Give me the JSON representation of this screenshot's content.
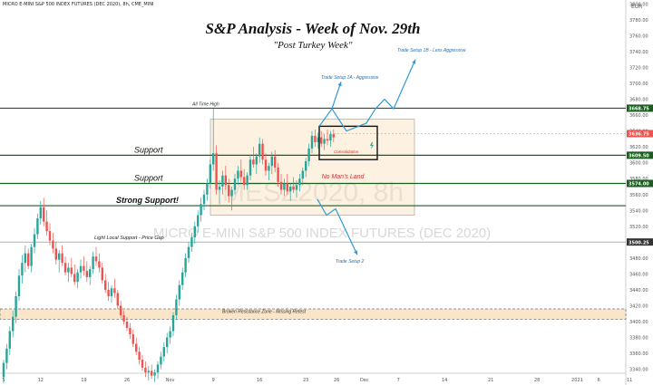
{
  "header": {
    "symbol_line": "MICRO E-MINI S&P 500 INDEX FUTURES (DEC 2020), 8h, CME_MINI",
    "top_right_code": "EUR"
  },
  "title": "S&P Analysis - Week of Nov. 29th",
  "subtitle": "\"Post Turkey Week\"",
  "watermark": {
    "line1": "MESZ2020, 8h",
    "line2": "MICRO E-MINI S&P 500 INDEX FUTURES (DEC 2020)"
  },
  "colors": {
    "up": "#26a69a",
    "down": "#ef5350",
    "level_line": "#1b5e20",
    "arrow": "#2e9bd6",
    "zone_fill": "#fbe5c8",
    "red_text": "#d32f2f",
    "label_bg_dark": "#1b5e20",
    "label_bg_red": "#ef5350"
  },
  "chart_data": {
    "type": "candlestick",
    "ylim": [
      3335,
      3805
    ],
    "y_ticks": [
      3340,
      3360,
      3380,
      3400,
      3420,
      3440,
      3460,
      3480,
      3500,
      3520,
      3540,
      3560,
      3580,
      3600,
      3620,
      3640,
      3660,
      3680,
      3700,
      3720,
      3740,
      3760,
      3780,
      3800
    ],
    "x_ticks": [
      {
        "label": "5",
        "i": 0
      },
      {
        "label": "12",
        "i": 12
      },
      {
        "label": "19",
        "i": 26
      },
      {
        "label": "26",
        "i": 40
      },
      {
        "label": "Nov",
        "i": 54
      },
      {
        "label": "9",
        "i": 68
      },
      {
        "label": "16",
        "i": 83
      },
      {
        "label": "23",
        "i": 98
      },
      {
        "label": "26",
        "i": 108
      },
      {
        "label": "Dec",
        "i": 117
      },
      {
        "label": "7",
        "i": 128
      },
      {
        "label": "14",
        "i": 143
      },
      {
        "label": "21",
        "i": 158
      },
      {
        "label": "28",
        "i": 173
      },
      {
        "label": "2021",
        "i": 186
      },
      {
        "label": "6",
        "i": 193
      },
      {
        "label": "11",
        "i": 203
      }
    ],
    "ohlc": [
      [
        3330,
        3352,
        3322,
        3348
      ],
      [
        3348,
        3372,
        3340,
        3366
      ],
      [
        3366,
        3394,
        3358,
        3388
      ],
      [
        3388,
        3414,
        3380,
        3406
      ],
      [
        3406,
        3438,
        3398,
        3432
      ],
      [
        3432,
        3466,
        3426,
        3458
      ],
      [
        3458,
        3484,
        3448,
        3474
      ],
      [
        3474,
        3496,
        3462,
        3486
      ],
      [
        3486,
        3492,
        3466,
        3470
      ],
      [
        3470,
        3498,
        3462,
        3494
      ],
      [
        3494,
        3518,
        3486,
        3510
      ],
      [
        3510,
        3536,
        3504,
        3530
      ],
      [
        3530,
        3552,
        3522,
        3544
      ],
      [
        3544,
        3556,
        3520,
        3526
      ],
      [
        3526,
        3540,
        3508,
        3514
      ],
      [
        3514,
        3524,
        3496,
        3502
      ],
      [
        3502,
        3512,
        3486,
        3492
      ],
      [
        3492,
        3500,
        3472,
        3478
      ],
      [
        3478,
        3490,
        3462,
        3486
      ],
      [
        3486,
        3496,
        3470,
        3474
      ],
      [
        3474,
        3482,
        3458,
        3462
      ],
      [
        3462,
        3474,
        3450,
        3468
      ],
      [
        3468,
        3480,
        3456,
        3460
      ],
      [
        3460,
        3472,
        3446,
        3450
      ],
      [
        3450,
        3466,
        3442,
        3462
      ],
      [
        3462,
        3478,
        3454,
        3470
      ],
      [
        3470,
        3482,
        3458,
        3464
      ],
      [
        3464,
        3476,
        3450,
        3456
      ],
      [
        3456,
        3470,
        3446,
        3466
      ],
      [
        3466,
        3488,
        3460,
        3482
      ],
      [
        3482,
        3494,
        3470,
        3476
      ],
      [
        3476,
        3486,
        3462,
        3468
      ],
      [
        3468,
        3474,
        3448,
        3452
      ],
      [
        3452,
        3460,
        3436,
        3440
      ],
      [
        3440,
        3450,
        3426,
        3432
      ],
      [
        3432,
        3446,
        3424,
        3442
      ],
      [
        3442,
        3454,
        3430,
        3436
      ],
      [
        3436,
        3440,
        3416,
        3420
      ],
      [
        3420,
        3426,
        3404,
        3408
      ],
      [
        3408,
        3414,
        3396,
        3400
      ],
      [
        3400,
        3406,
        3388,
        3392
      ],
      [
        3392,
        3398,
        3378,
        3384
      ],
      [
        3384,
        3390,
        3368,
        3372
      ],
      [
        3372,
        3380,
        3358,
        3362
      ],
      [
        3362,
        3368,
        3346,
        3352
      ],
      [
        3352,
        3358,
        3338,
        3342
      ],
      [
        3342,
        3350,
        3330,
        3336
      ],
      [
        3336,
        3344,
        3326,
        3338
      ],
      [
        3338,
        3346,
        3328,
        3332
      ],
      [
        3332,
        3340,
        3324,
        3336
      ],
      [
        3336,
        3350,
        3328,
        3346
      ],
      [
        3346,
        3362,
        3340,
        3356
      ],
      [
        3356,
        3374,
        3350,
        3368
      ],
      [
        3368,
        3386,
        3360,
        3380
      ],
      [
        3380,
        3394,
        3372,
        3388
      ],
      [
        3388,
        3412,
        3382,
        3408
      ],
      [
        3408,
        3434,
        3402,
        3428
      ],
      [
        3428,
        3452,
        3420,
        3446
      ],
      [
        3446,
        3468,
        3440,
        3462
      ],
      [
        3462,
        3486,
        3456,
        3480
      ],
      [
        3480,
        3500,
        3474,
        3494
      ],
      [
        3494,
        3512,
        3488,
        3506
      ],
      [
        3506,
        3526,
        3498,
        3520
      ],
      [
        3520,
        3540,
        3512,
        3534
      ],
      [
        3534,
        3556,
        3526,
        3548
      ],
      [
        3548,
        3566,
        3540,
        3560
      ],
      [
        3560,
        3580,
        3552,
        3574
      ],
      [
        3574,
        3604,
        3568,
        3598
      ],
      [
        3598,
        3668,
        3590,
        3612
      ],
      [
        3612,
        3622,
        3560,
        3566
      ],
      [
        3566,
        3578,
        3548,
        3570
      ],
      [
        3570,
        3590,
        3560,
        3584
      ],
      [
        3584,
        3596,
        3566,
        3572
      ],
      [
        3572,
        3580,
        3550,
        3558
      ],
      [
        3558,
        3570,
        3540,
        3566
      ],
      [
        3566,
        3586,
        3560,
        3580
      ],
      [
        3580,
        3596,
        3572,
        3590
      ],
      [
        3590,
        3604,
        3576,
        3582
      ],
      [
        3582,
        3592,
        3566,
        3572
      ],
      [
        3572,
        3588,
        3566,
        3584
      ],
      [
        3584,
        3610,
        3578,
        3604
      ],
      [
        3604,
        3620,
        3594,
        3598
      ],
      [
        3598,
        3612,
        3586,
        3608
      ],
      [
        3608,
        3632,
        3600,
        3624
      ],
      [
        3624,
        3630,
        3598,
        3604
      ],
      [
        3604,
        3612,
        3584,
        3590
      ],
      [
        3590,
        3600,
        3578,
        3596
      ],
      [
        3596,
        3614,
        3586,
        3608
      ],
      [
        3608,
        3616,
        3588,
        3594
      ],
      [
        3594,
        3600,
        3570,
        3576
      ],
      [
        3576,
        3586,
        3560,
        3566
      ],
      [
        3566,
        3580,
        3558,
        3574
      ],
      [
        3574,
        3586,
        3560,
        3564
      ],
      [
        3564,
        3574,
        3552,
        3570
      ],
      [
        3570,
        3582,
        3562,
        3566
      ],
      [
        3566,
        3578,
        3556,
        3572
      ],
      [
        3572,
        3586,
        3564,
        3580
      ],
      [
        3580,
        3594,
        3572,
        3590
      ],
      [
        3590,
        3606,
        3582,
        3602
      ],
      [
        3602,
        3624,
        3596,
        3618
      ],
      [
        3618,
        3640,
        3612,
        3634
      ],
      [
        3634,
        3642,
        3620,
        3626
      ],
      [
        3626,
        3638,
        3618,
        3632
      ],
      [
        3632,
        3640,
        3620,
        3624
      ],
      [
        3624,
        3636,
        3616,
        3630
      ],
      [
        3630,
        3642,
        3622,
        3628
      ],
      [
        3628,
        3640,
        3620,
        3636
      ],
      [
        3636,
        3642,
        3626,
        3632
      ]
    ],
    "levels": [
      {
        "price": 3668.75,
        "label": "3668.75",
        "style": "dark",
        "text": "All Time High",
        "text_side": "left-mid"
      },
      {
        "price": 3636.75,
        "label": "3636.75",
        "style": "red",
        "text": "",
        "text_side": ""
      },
      {
        "price": 3609.5,
        "label": "3609.50",
        "style": "dark",
        "text": "Support",
        "text_side": "left"
      },
      {
        "price": 3574.0,
        "label": "3574.00",
        "style": "dark",
        "text": "Support",
        "text_side": "left"
      },
      {
        "price": 3546.0,
        "label": "",
        "style": "dark",
        "text": "Strong Support!",
        "text_side": "left"
      },
      {
        "price": 3500.25,
        "label": "3500.25",
        "style": "thin",
        "text": "Light Local Support - Price Gap",
        "text_side": "left"
      }
    ],
    "annotations": {
      "no_mans_land": "No Man's Land",
      "consolidation": "Consolidation",
      "broken_zone": "Broken Resistance Zone - Missing Retest",
      "setup_1a": "Trade Setup 1A - Aggressive",
      "setup_1b": "Trade Setup 1B - Less Aggressive",
      "setup_2": "Trade Setup 2"
    },
    "broken_zone_range": [
      3403,
      3416
    ]
  }
}
